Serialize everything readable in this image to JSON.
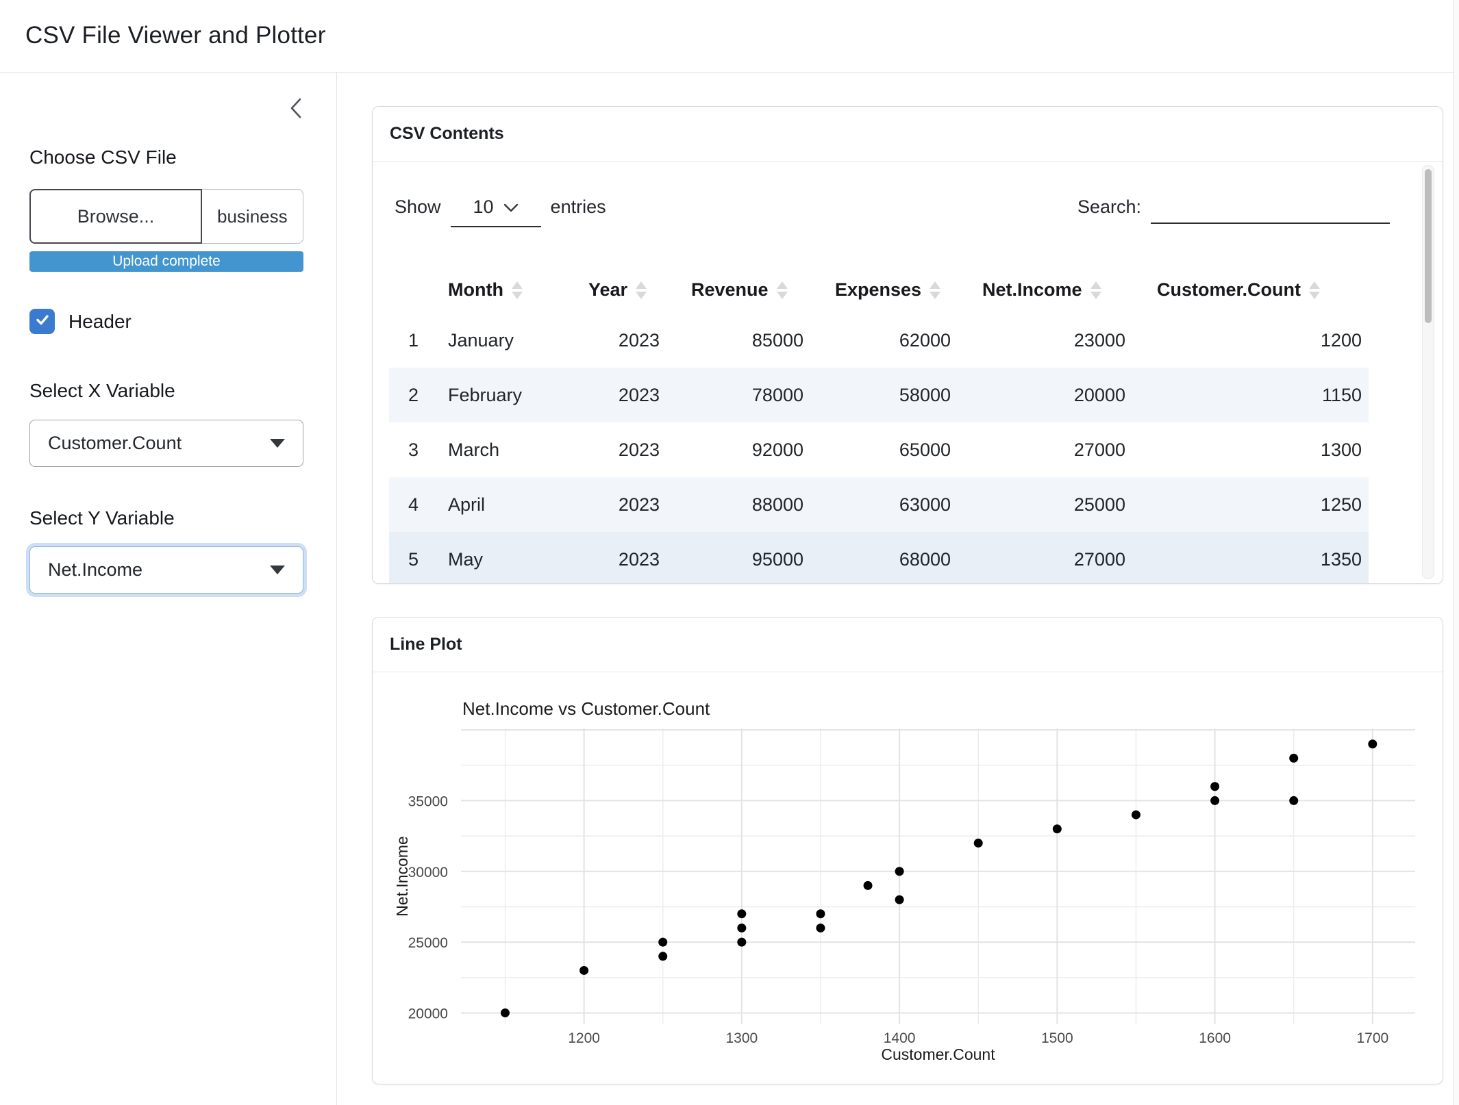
{
  "app": {
    "title": "CSV File Viewer and Plotter"
  },
  "sidebar": {
    "file_input": {
      "label": "Choose CSV File",
      "browse_label": "Browse...",
      "filename": "business",
      "progress_text": "Upload complete"
    },
    "header_checkbox": {
      "label": "Header",
      "checked": true
    },
    "x_select": {
      "label": "Select X Variable",
      "value": "Customer.Count"
    },
    "y_select": {
      "label": "Select Y Variable",
      "value": "Net.Income"
    }
  },
  "csv_card": {
    "title": "CSV Contents",
    "show_label": "Show",
    "page_size": "10",
    "entries_label": "entries",
    "search_label": "Search:",
    "search_value": "",
    "table": {
      "columns": [
        "Month",
        "Year",
        "Revenue",
        "Expenses",
        "Net.Income",
        "Customer.Count"
      ],
      "rows": [
        [
          "1",
          "January",
          "2023",
          "85000",
          "62000",
          "23000",
          "1200"
        ],
        [
          "2",
          "February",
          "2023",
          "78000",
          "58000",
          "20000",
          "1150"
        ],
        [
          "3",
          "March",
          "2023",
          "92000",
          "65000",
          "27000",
          "1300"
        ],
        [
          "4",
          "April",
          "2023",
          "88000",
          "63000",
          "25000",
          "1250"
        ],
        [
          "5",
          "May",
          "2023",
          "95000",
          "68000",
          "27000",
          "1350"
        ]
      ]
    }
  },
  "plot_card": {
    "title": "Line Plot"
  },
  "chart_data": {
    "type": "scatter",
    "title": "Net.Income vs Customer.Count",
    "xlabel": "Customer.Count",
    "ylabel": "Net.Income",
    "x": [
      1150,
      1200,
      1250,
      1250,
      1300,
      1300,
      1300,
      1350,
      1350,
      1380,
      1400,
      1400,
      1450,
      1500,
      1550,
      1600,
      1600,
      1650,
      1650,
      1700
    ],
    "y": [
      20000,
      23000,
      24000,
      25000,
      25000,
      26000,
      27000,
      26000,
      27000,
      29000,
      28000,
      30000,
      32000,
      33000,
      34000,
      35000,
      36000,
      35000,
      38000,
      39000
    ],
    "xlim": [
      1122,
      1727
    ],
    "ylim": [
      19200,
      40100
    ],
    "x_ticks": [
      1200,
      1300,
      1400,
      1500,
      1600,
      1700
    ],
    "x_minor": [
      1150,
      1250,
      1350,
      1450,
      1550,
      1650
    ],
    "y_ticks": [
      20000,
      25000,
      30000,
      35000
    ],
    "y_major": [
      20000,
      25000,
      30000,
      35000,
      40000
    ],
    "y_minor": [
      22500,
      27500,
      32500,
      37500
    ],
    "grid": "on",
    "legend": "none",
    "point_color": "#000000",
    "major_grid_color": "#e3e3e3",
    "minor_grid_color": "#eeeeee",
    "tick_label_color": "#4a4a4a"
  }
}
